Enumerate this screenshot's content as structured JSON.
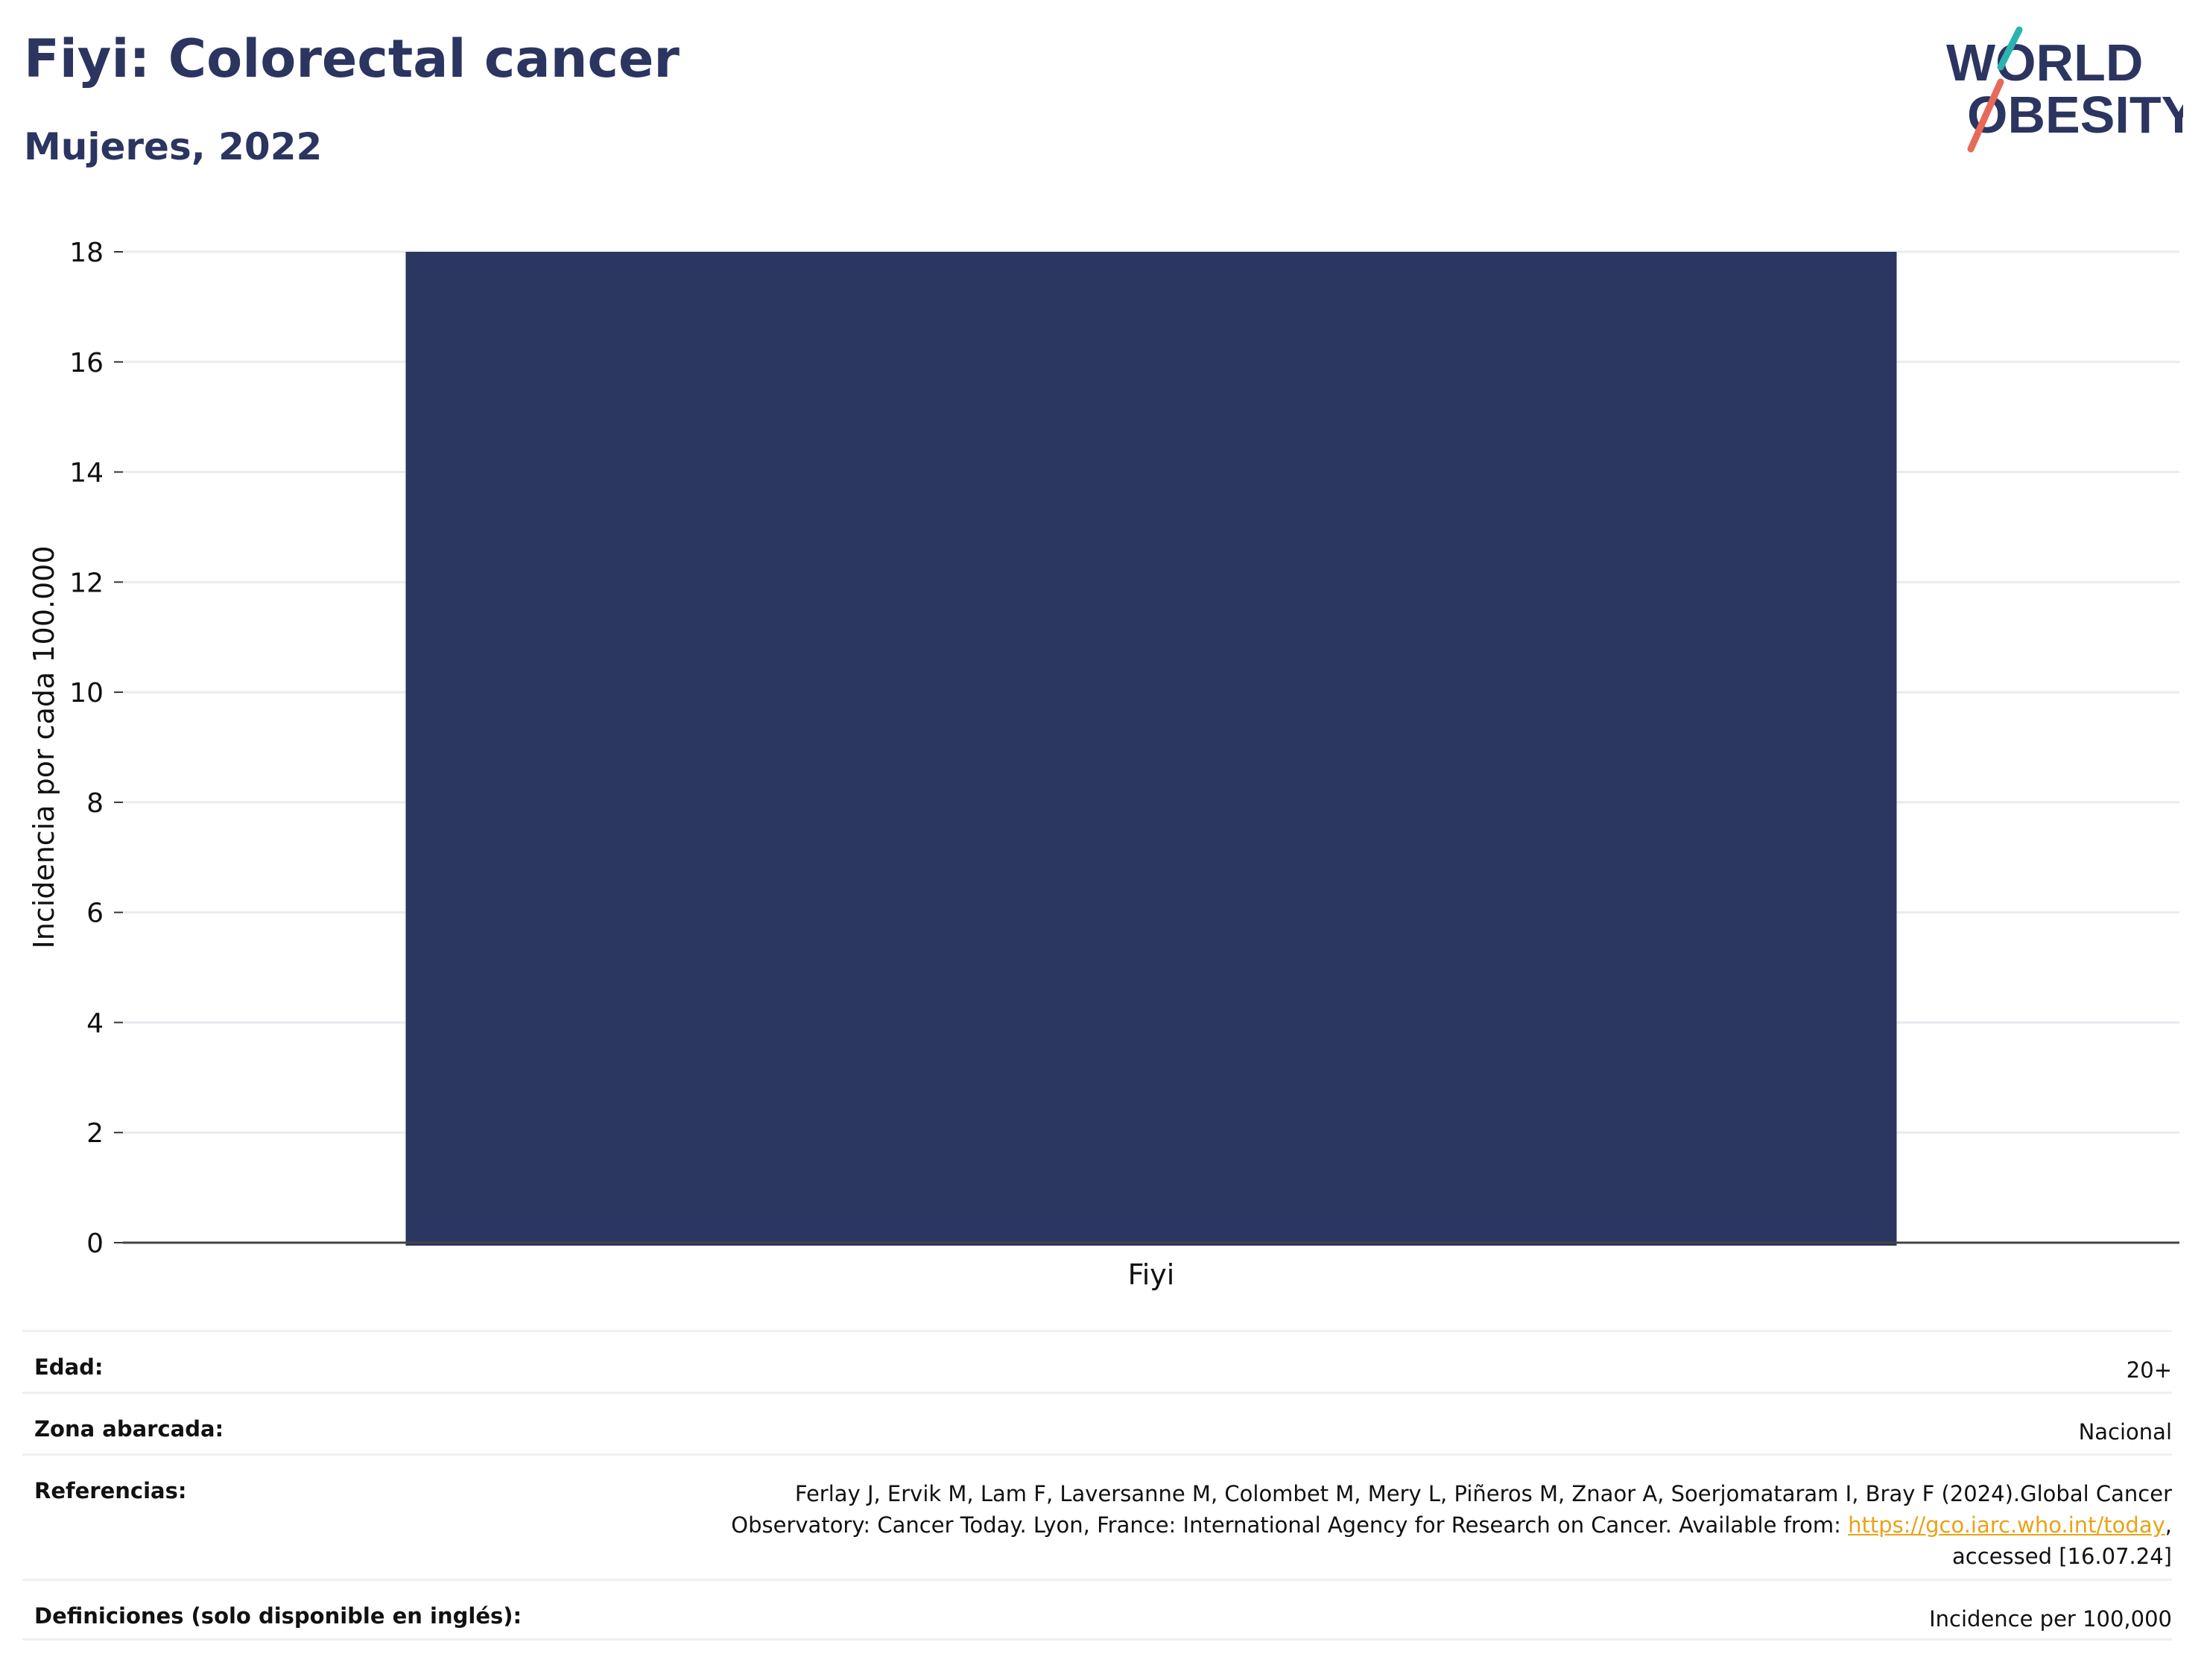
{
  "header": {
    "title": "Fiyi: Colorectal cancer",
    "subtitle": "Mujeres, 2022"
  },
  "logo": {
    "line1": "WORLD",
    "line2": "OBESITY",
    "colors": {
      "text": "#2b3560",
      "slash_top": "#2ab3b1",
      "slash_bottom": "#e8695a"
    }
  },
  "chart_data": {
    "type": "bar",
    "categories": [
      "Fiyi"
    ],
    "values": [
      18
    ],
    "ylabel": "Incidencia por cada 100.000",
    "ylim": [
      0,
      18
    ],
    "yticks": [
      0,
      2,
      4,
      6,
      8,
      10,
      12,
      14,
      16,
      18
    ],
    "grid": true,
    "bar_color": "#2b3661"
  },
  "meta": {
    "rows": [
      {
        "label": "Edad:",
        "value": "20+"
      },
      {
        "label": "Zona abarcada:",
        "value": "Nacional"
      },
      {
        "label": "Referencias:",
        "value_line1": "Ferlay J, Ervik M, Lam F, Laversanne M, Colombet M, Mery L, Piñeros M, Znaor A, Soerjomataram I, Bray F (2024).Global Cancer",
        "value_line2_pre": "Observatory: Cancer Today. Lyon, France: International Agency for Research on Cancer. Available from: ",
        "link": "https://gco.iarc.who.int/today",
        "value_line2_post": ",",
        "value_line3": "accessed [16.07.24]"
      },
      {
        "label": "Definiciones (solo disponible en inglés):",
        "value": "Incidence per 100,000"
      }
    ]
  }
}
